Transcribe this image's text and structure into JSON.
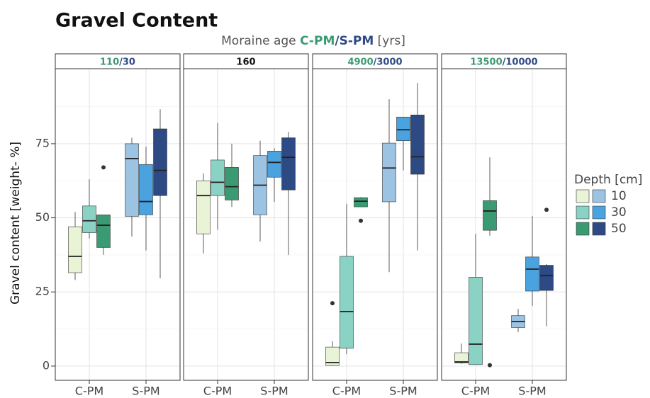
{
  "chart_data": {
    "type": "box",
    "title": "Gravel Content",
    "subtitle": [
      {
        "text": "Moraine age ",
        "color": "#555555"
      },
      {
        "text": "C-PM",
        "color": "#3a9a72",
        "bold": true
      },
      {
        "text": "/S-PM",
        "color": "#2e4a85",
        "bold": true
      },
      {
        "text": " [yrs]",
        "color": "#555555"
      }
    ],
    "y_label": "Gravel content [weight- %]",
    "ylim": [
      -4.8,
      100.3
    ],
    "yticks": [
      0,
      25,
      50,
      75
    ],
    "minor_yticks": [
      12.5,
      37.5,
      62.5,
      87.5
    ],
    "grid": true,
    "categories": [
      "C-PM",
      "S-PM"
    ],
    "fills": [
      [
        "#e9f4d7",
        "#8ad2c3",
        "#3a9a72"
      ],
      [
        "#9dc3e2",
        "#4aa3df",
        "#2e4a85"
      ]
    ],
    "legend": {
      "title": "Depth [cm]",
      "labels": [
        "10",
        "30",
        "50"
      ],
      "position": "right"
    },
    "panels": [
      {
        "strip": [
          {
            "text": "110",
            "color": "#3a9a72"
          },
          {
            "text": "/",
            "color": "#2e4a85"
          },
          {
            "text": "30",
            "color": "#2e4a85"
          }
        ],
        "boxes": [
          [
            {
              "min": 29,
              "q1": 31.5,
              "median": 37,
              "q3": 47,
              "max": 52
            },
            {
              "min": 43,
              "q1": 45,
              "median": 49,
              "q3": 54,
              "max": 63
            },
            {
              "min": 37.5,
              "q1": 40,
              "median": 47.5,
              "q3": 51,
              "max": 51,
              "outliers": [
                67
              ]
            }
          ],
          [
            {
              "min": 43.7,
              "q1": 50.5,
              "median": 70,
              "q3": 75,
              "max": 77
            },
            {
              "min": 39,
              "q1": 51,
              "median": 55.5,
              "q3": 68,
              "max": 74
            },
            {
              "min": 29.6,
              "q1": 57.5,
              "median": 66,
              "q3": 80,
              "max": 86.6
            }
          ]
        ]
      },
      {
        "strip": [
          {
            "text": "160",
            "color": "#111111"
          }
        ],
        "boxes": [
          [
            {
              "min": 38,
              "q1": 44.6,
              "median": 57.5,
              "q3": 62.5,
              "max": 65
            },
            {
              "min": 46,
              "q1": 57.5,
              "median": 62,
              "q3": 69.5,
              "max": 82
            },
            {
              "min": 53.7,
              "q1": 56,
              "median": 60.5,
              "q3": 67,
              "max": 75
            }
          ],
          [
            {
              "min": 42,
              "q1": 51,
              "median": 61,
              "q3": 71,
              "max": 76
            },
            {
              "min": 55.4,
              "q1": 63.7,
              "median": 68.7,
              "q3": 72.5,
              "max": 73.5
            },
            {
              "min": 37.5,
              "q1": 59.4,
              "median": 70.4,
              "q3": 77,
              "max": 79
            }
          ]
        ]
      },
      {
        "strip": [
          {
            "text": "4900",
            "color": "#3a9a72"
          },
          {
            "text": "/",
            "color": "#2e4a85"
          },
          {
            "text": "3000",
            "color": "#2e4a85"
          }
        ],
        "boxes": [
          [
            {
              "min": 0,
              "q1": 0.2,
              "median": 1.2,
              "q3": 6.4,
              "max": 8.4,
              "outliers": [
                21.2
              ]
            },
            {
              "min": 4,
              "q1": 6,
              "median": 18.4,
              "q3": 37,
              "max": 54.7
            },
            {
              "min": 53.7,
              "q1": 53.7,
              "median": 55.6,
              "q3": 56.8,
              "max": 57,
              "outliers": [
                49
              ]
            }
          ],
          [
            {
              "min": 31.7,
              "q1": 55.4,
              "median": 66.8,
              "q3": 75.2,
              "max": 90
            },
            {
              "min": 66,
              "q1": 76,
              "median": 79.7,
              "q3": 84,
              "max": 84
            },
            {
              "min": 39,
              "q1": 64.7,
              "median": 70.6,
              "q3": 84.7,
              "max": 95.5
            }
          ]
        ]
      },
      {
        "strip": [
          {
            "text": "13500",
            "color": "#3a9a72"
          },
          {
            "text": "/",
            "color": "#2e4a85"
          },
          {
            "text": "10000",
            "color": "#2e4a85"
          }
        ],
        "boxes": [
          [
            {
              "min": 0.7,
              "q1": 1,
              "median": 1.4,
              "q3": 4.5,
              "max": 7.6
            },
            {
              "min": 0.5,
              "q1": 0.5,
              "median": 7.4,
              "q3": 30,
              "max": 44.6
            },
            {
              "min": 44,
              "q1": 45.8,
              "median": 52.3,
              "q3": 55.8,
              "max": 70.4,
              "outliers": [
                0.3
              ]
            }
          ],
          [
            {
              "min": 11.5,
              "q1": 13,
              "median": 15,
              "q3": 17,
              "max": 19.3
            },
            {
              "min": 20.3,
              "q1": 25.3,
              "median": 32.7,
              "q3": 36.8,
              "max": 50.6
            },
            {
              "min": 13.4,
              "q1": 25.5,
              "median": 30.5,
              "q3": 34,
              "max": 34.4,
              "outliers": [
                52.7
              ]
            }
          ]
        ]
      }
    ]
  }
}
